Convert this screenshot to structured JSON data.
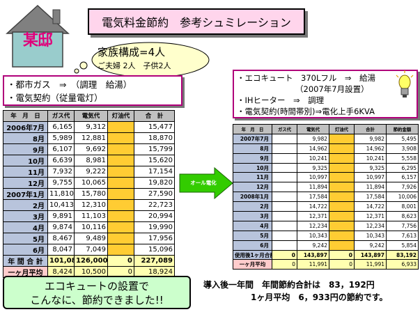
{
  "house_label": "某邸",
  "title": "電気料金節約　参考シュミレーション",
  "family": {
    "main": "家族構成=4人",
    "sub": "ご夫婦 2人　子供2人"
  },
  "left_info": [
    "・都市ガス　⇒　（調理　給湯）",
    "・電気契約（従量電灯）"
  ],
  "right_info": [
    "・エコキュート　370Lフル　⇒　給湯",
    "（2007年7月設置）",
    "・IHヒーター　⇒　調理",
    "・電気契約(時間帯別)⇒電化上手6KVA"
  ],
  "arrow_label": "オール電化",
  "before": {
    "headers": [
      "年　月　日",
      "ガス代",
      "電気代",
      "灯油代",
      "合　計"
    ],
    "rows": [
      [
        "2006年7月",
        "6,165",
        "9,312",
        "",
        "15,477"
      ],
      [
        "8月",
        "5,989",
        "12,881",
        "",
        "18,870"
      ],
      [
        "9月",
        "6,107",
        "9,692",
        "",
        "15,799"
      ],
      [
        "10月",
        "6,639",
        "8,981",
        "",
        "15,620"
      ],
      [
        "11月",
        "7,932",
        "9,222",
        "",
        "17,154"
      ],
      [
        "12月",
        "9,755",
        "10,065",
        "",
        "19,820"
      ],
      [
        "2007年1月",
        "11,810",
        "15,780",
        "",
        "27,590"
      ],
      [
        "2月",
        "10,413",
        "12,310",
        "",
        "22,723"
      ],
      [
        "3月",
        "9,891",
        "11,103",
        "",
        "20,994"
      ],
      [
        "4月",
        "9,874",
        "10,116",
        "",
        "19,990"
      ],
      [
        "5月",
        "8,467",
        "9,489",
        "",
        "17,956"
      ],
      [
        "6月",
        "8,047",
        "7,049",
        "",
        "15,096"
      ]
    ],
    "total": [
      "年 間 合 計",
      "101,089",
      "126,000",
      "0",
      "227,089"
    ],
    "average": [
      "一ヶ月平均",
      "8,424",
      "10,500",
      "0",
      "18,924"
    ]
  },
  "after": {
    "headers": [
      "年　月　日",
      "ガス代",
      "電気代",
      "灯油代",
      "合計",
      "節約金額"
    ],
    "rows": [
      [
        "2007年7月",
        "",
        "9,982",
        "",
        "9,982",
        "5,495"
      ],
      [
        "8月",
        "",
        "14,962",
        "",
        "14,962",
        "3,908"
      ],
      [
        "9月",
        "",
        "10,241",
        "",
        "10,241",
        "5,558"
      ],
      [
        "10月",
        "",
        "9,325",
        "",
        "9,325",
        "6,295"
      ],
      [
        "11月",
        "",
        "10,997",
        "",
        "10,997",
        "6,157"
      ],
      [
        "12月",
        "",
        "11,894",
        "",
        "11,894",
        "7,926"
      ],
      [
        "2008年1月",
        "",
        "17,584",
        "",
        "17,584",
        "10,006"
      ],
      [
        "2月",
        "",
        "14,722",
        "",
        "14,722",
        "8,001"
      ],
      [
        "3月",
        "",
        "12,371",
        "",
        "12,371",
        "8,623"
      ],
      [
        "4月",
        "",
        "12,234",
        "",
        "12,234",
        "7,756"
      ],
      [
        "5月",
        "",
        "10,343",
        "",
        "10,343",
        "7,613"
      ],
      [
        "6月",
        "",
        "9,242",
        "",
        "9,242",
        "5,854"
      ]
    ],
    "total": [
      "使用後1ヶ月合計",
      "0",
      "143,897",
      "0",
      "143,897",
      "83,192"
    ],
    "average": [
      "一ヶ月平均",
      "0",
      "11,991",
      "0",
      "11,991",
      "6,933"
    ]
  },
  "bottom_left": [
    "エコキュートの設置で",
    "こんなに、節約できました!!"
  ],
  "bottom_right": [
    "導入後一年間　年間節約合計は　83，192円",
    "1ヶ月平均　6，933円の節約です。"
  ],
  "colors": {
    "title_bg": "#ffd5ec",
    "house_roof": "#808080",
    "house_wall": "#99cccc",
    "arrow": "#33cc00",
    "month_col": "#b8c4dc",
    "kerosene_col": "#ffcc33",
    "summary": "#ffffb0",
    "banner": "#ccffcc"
  }
}
